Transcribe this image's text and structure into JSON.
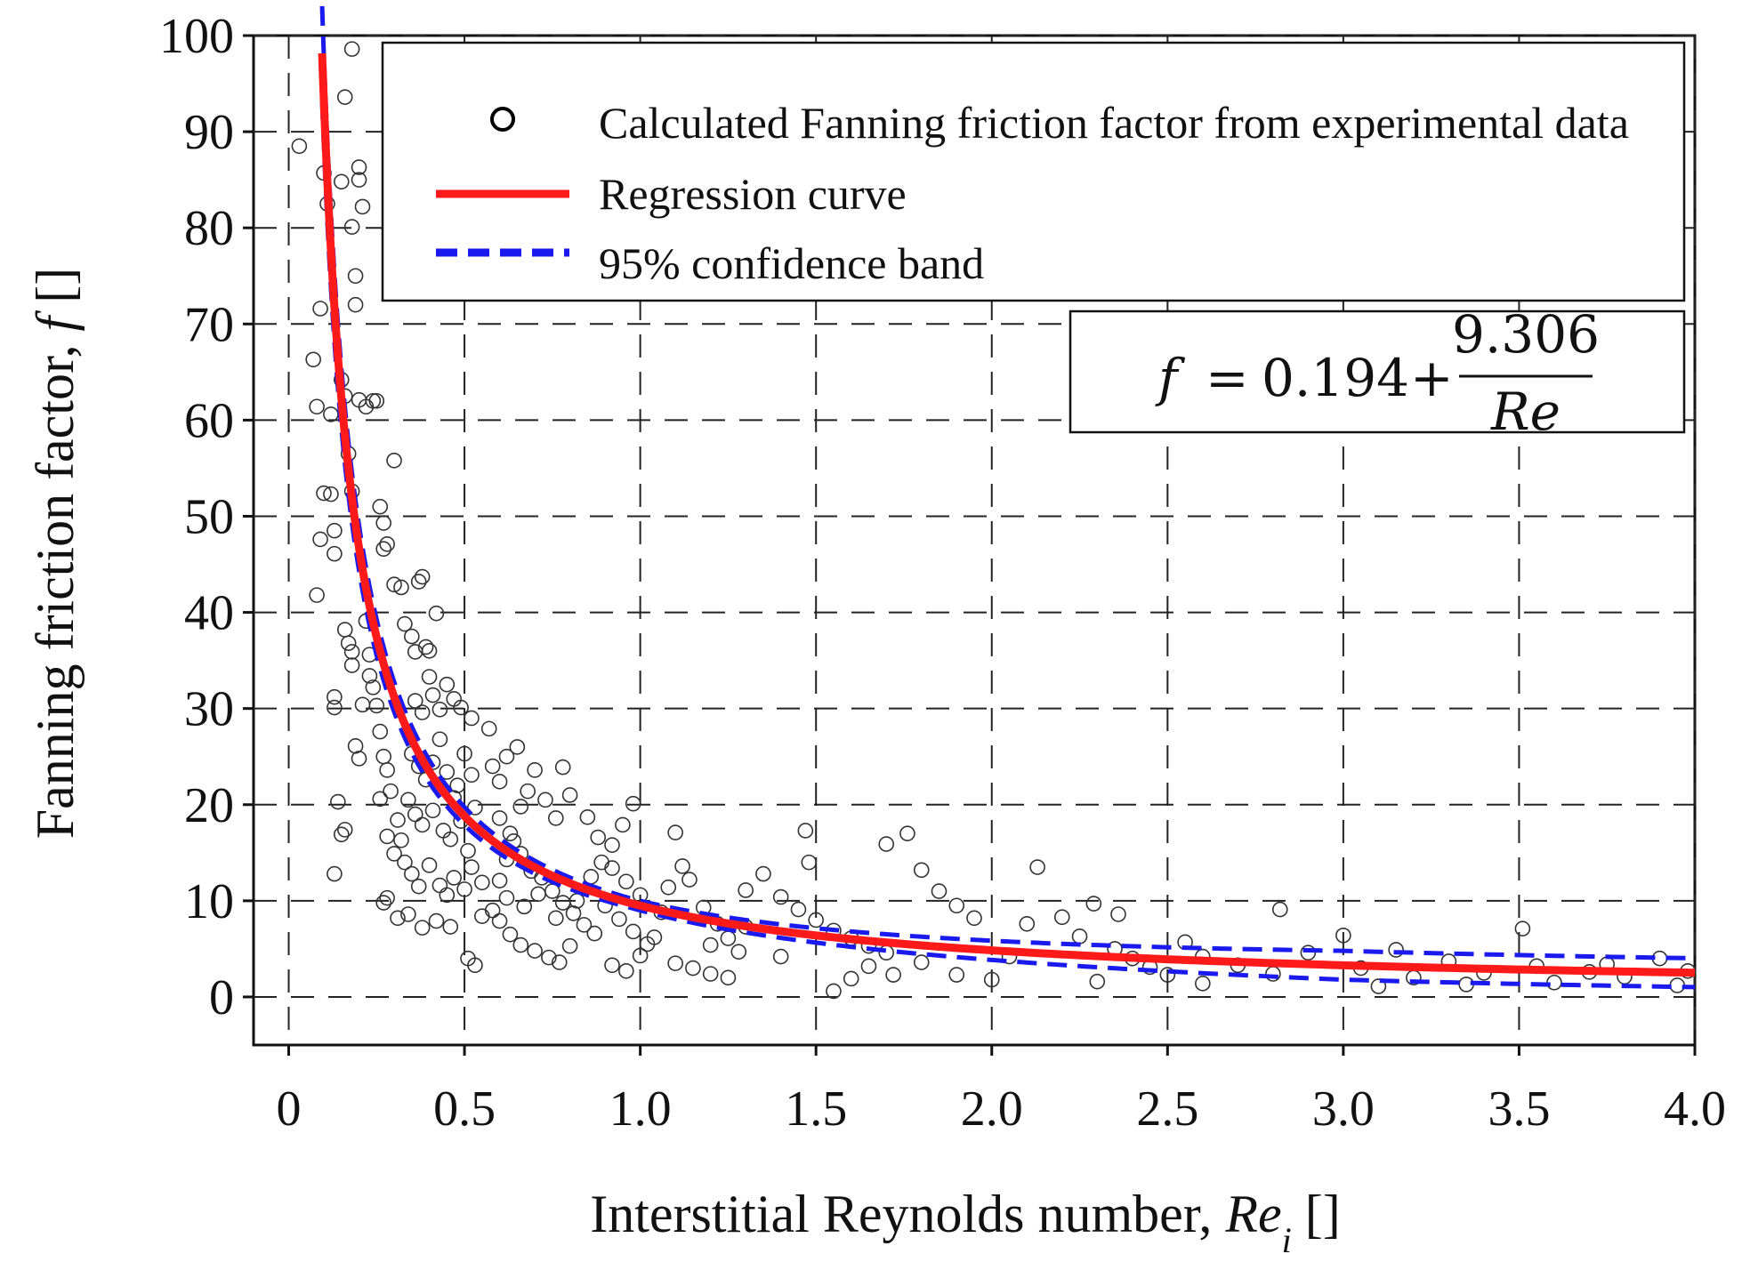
{
  "chart_data": {
    "type": "scatter",
    "xlabel": {
      "main": "Interstitial Reynolds number, ",
      "var": "Re",
      "sub": "i",
      "unit": " []"
    },
    "ylabel": {
      "main": "Fanning friction factor, ",
      "var": "f",
      "unit": " []"
    },
    "xlim": [
      -0.1,
      4.0
    ],
    "ylim": [
      -5,
      100
    ],
    "xticks": [
      0,
      0.5,
      1.0,
      1.5,
      2.0,
      2.5,
      3.0,
      3.5,
      4.0
    ],
    "xtick_labels": [
      "0",
      "0.5",
      "1.0",
      "1.5",
      "2.0",
      "2.5",
      "3.0",
      "3.5",
      "4.0"
    ],
    "yticks": [
      0,
      10,
      20,
      30,
      40,
      50,
      60,
      70,
      80,
      90,
      100
    ],
    "ytick_labels": [
      "0",
      "10",
      "20",
      "30",
      "40",
      "50",
      "60",
      "70",
      "80",
      "90",
      "100"
    ],
    "grid": true,
    "grid_style": "dashed",
    "legend_placement": "top-right",
    "legend": [
      {
        "label": "Calculated Fanning friction factor from experimental data",
        "marker": "open-circle",
        "color": "#000000"
      },
      {
        "label": "Regression curve",
        "marker": "solid-line",
        "color": "#ff1a1a"
      },
      {
        "label": "95% confidence band",
        "marker": "dashed-line",
        "color": "#1a1aee"
      }
    ],
    "equation": {
      "lhs": "f",
      "equals": "=",
      "constant": "0.194",
      "plus": "+",
      "numerator": "9.306",
      "denominator": "Re"
    },
    "regression": {
      "a": 0.194,
      "b": 9.306,
      "x_start": 0.095,
      "x_end": 4.0,
      "color": "#ff1a1a"
    },
    "confidence_band": {
      "relative_width_low_re": 0.05,
      "absolute_width_high_re": 1.5,
      "color": "#1a1aee"
    },
    "scatter_points": [
      [
        0.03,
        88.5
      ],
      [
        0.07,
        66.3
      ],
      [
        0.08,
        61.4
      ],
      [
        0.09,
        71.6
      ],
      [
        0.1,
        85.7
      ],
      [
        0.11,
        82.5
      ],
      [
        0.1,
        52.4
      ],
      [
        0.09,
        47.6
      ],
      [
        0.08,
        41.8
      ],
      [
        0.12,
        52.3
      ],
      [
        0.12,
        60.6
      ],
      [
        0.13,
        46.1
      ],
      [
        0.13,
        48.5
      ],
      [
        0.13,
        31.2
      ],
      [
        0.13,
        30.1
      ],
      [
        0.14,
        20.3
      ],
      [
        0.15,
        16.9
      ],
      [
        0.16,
        17.4
      ],
      [
        0.13,
        12.8
      ],
      [
        0.15,
        84.8
      ],
      [
        0.16,
        93.6
      ],
      [
        0.18,
        98.6
      ],
      [
        0.18,
        80.1
      ],
      [
        0.19,
        75.0
      ],
      [
        0.19,
        72.0
      ],
      [
        0.2,
        86.3
      ],
      [
        0.2,
        85.0
      ],
      [
        0.21,
        82.2
      ],
      [
        0.15,
        64.2
      ],
      [
        0.16,
        62.5
      ],
      [
        0.17,
        56.5
      ],
      [
        0.18,
        52.6
      ],
      [
        0.2,
        62.1
      ],
      [
        0.22,
        61.4
      ],
      [
        0.24,
        62.0
      ],
      [
        0.25,
        62.0
      ],
      [
        0.26,
        51.0
      ],
      [
        0.27,
        49.3
      ],
      [
        0.27,
        46.6
      ],
      [
        0.28,
        47.1
      ],
      [
        0.3,
        55.8
      ],
      [
        0.16,
        38.2
      ],
      [
        0.17,
        36.8
      ],
      [
        0.18,
        35.9
      ],
      [
        0.18,
        34.5
      ],
      [
        0.19,
        26.1
      ],
      [
        0.2,
        24.8
      ],
      [
        0.21,
        30.4
      ],
      [
        0.22,
        39.1
      ],
      [
        0.23,
        35.6
      ],
      [
        0.23,
        33.4
      ],
      [
        0.24,
        32.2
      ],
      [
        0.25,
        30.3
      ],
      [
        0.26,
        27.6
      ],
      [
        0.26,
        20.6
      ],
      [
        0.27,
        25.0
      ],
      [
        0.28,
        23.6
      ],
      [
        0.29,
        21.4
      ],
      [
        0.28,
        16.7
      ],
      [
        0.3,
        14.9
      ],
      [
        0.31,
        18.4
      ],
      [
        0.32,
        16.3
      ],
      [
        0.28,
        10.3
      ],
      [
        0.27,
        9.8
      ],
      [
        0.31,
        8.2
      ],
      [
        0.3,
        42.9
      ],
      [
        0.32,
        42.6
      ],
      [
        0.33,
        38.8
      ],
      [
        0.35,
        37.5
      ],
      [
        0.36,
        35.9
      ],
      [
        0.37,
        43.2
      ],
      [
        0.38,
        43.7
      ],
      [
        0.39,
        36.4
      ],
      [
        0.4,
        36.0
      ],
      [
        0.42,
        39.9
      ],
      [
        0.36,
        30.8
      ],
      [
        0.38,
        29.6
      ],
      [
        0.4,
        33.3
      ],
      [
        0.41,
        31.4
      ],
      [
        0.43,
        29.9
      ],
      [
        0.45,
        32.5
      ],
      [
        0.47,
        31.0
      ],
      [
        0.49,
        30.1
      ],
      [
        0.52,
        29.0
      ],
      [
        0.57,
        27.9
      ],
      [
        0.35,
        25.3
      ],
      [
        0.37,
        24.0
      ],
      [
        0.39,
        22.6
      ],
      [
        0.41,
        24.4
      ],
      [
        0.43,
        26.8
      ],
      [
        0.45,
        23.4
      ],
      [
        0.47,
        20.7
      ],
      [
        0.48,
        22.0
      ],
      [
        0.5,
        25.3
      ],
      [
        0.52,
        23.1
      ],
      [
        0.34,
        20.5
      ],
      [
        0.36,
        19.0
      ],
      [
        0.38,
        17.9
      ],
      [
        0.41,
        19.4
      ],
      [
        0.44,
        17.3
      ],
      [
        0.46,
        16.4
      ],
      [
        0.49,
        18.3
      ],
      [
        0.51,
        15.2
      ],
      [
        0.53,
        19.7
      ],
      [
        0.33,
        14.0
      ],
      [
        0.35,
        12.8
      ],
      [
        0.37,
        11.5
      ],
      [
        0.4,
        13.7
      ],
      [
        0.43,
        11.6
      ],
      [
        0.45,
        10.6
      ],
      [
        0.47,
        12.4
      ],
      [
        0.5,
        11.2
      ],
      [
        0.52,
        13.5
      ],
      [
        0.55,
        11.9
      ],
      [
        0.34,
        8.6
      ],
      [
        0.38,
        7.2
      ],
      [
        0.42,
        7.9
      ],
      [
        0.46,
        7.3
      ],
      [
        0.51,
        4.0
      ],
      [
        0.53,
        3.3
      ],
      [
        0.55,
        8.4
      ],
      [
        0.58,
        9.0
      ],
      [
        0.6,
        12.1
      ],
      [
        0.62,
        14.3
      ],
      [
        0.64,
        16.2
      ],
      [
        0.66,
        19.8
      ],
      [
        0.68,
        21.4
      ],
      [
        0.7,
        23.6
      ],
      [
        0.73,
        20.5
      ],
      [
        0.76,
        18.6
      ],
      [
        0.78,
        23.9
      ],
      [
        0.8,
        21.0
      ],
      [
        0.6,
        22.4
      ],
      [
        0.62,
        25.0
      ],
      [
        0.58,
        24.0
      ],
      [
        0.65,
        26.0
      ],
      [
        0.6,
        18.6
      ],
      [
        0.63,
        17.0
      ],
      [
        0.66,
        14.9
      ],
      [
        0.69,
        13.1
      ],
      [
        0.72,
        12.4
      ],
      [
        0.75,
        11.0
      ],
      [
        0.78,
        9.8
      ],
      [
        0.81,
        8.7
      ],
      [
        0.84,
        7.5
      ],
      [
        0.87,
        6.6
      ],
      [
        0.6,
        7.9
      ],
      [
        0.63,
        6.5
      ],
      [
        0.66,
        5.4
      ],
      [
        0.7,
        4.8
      ],
      [
        0.74,
        4.1
      ],
      [
        0.77,
        3.6
      ],
      [
        0.8,
        5.3
      ],
      [
        0.62,
        10.3
      ],
      [
        0.67,
        9.4
      ],
      [
        0.71,
        10.7
      ],
      [
        0.76,
        8.2
      ],
      [
        0.82,
        10.0
      ],
      [
        0.86,
        12.5
      ],
      [
        0.89,
        14.0
      ],
      [
        0.92,
        15.8
      ],
      [
        0.95,
        17.9
      ],
      [
        0.98,
        20.1
      ],
      [
        0.85,
        18.7
      ],
      [
        0.88,
        16.6
      ],
      [
        0.92,
        13.4
      ],
      [
        0.96,
        12.0
      ],
      [
        1.0,
        10.6
      ],
      [
        0.9,
        9.5
      ],
      [
        0.94,
        8.1
      ],
      [
        0.98,
        6.8
      ],
      [
        1.02,
        5.5
      ],
      [
        0.92,
        3.3
      ],
      [
        0.96,
        2.7
      ],
      [
        1.0,
        4.3
      ],
      [
        1.04,
        6.2
      ],
      [
        1.06,
        8.8
      ],
      [
        1.08,
        11.4
      ],
      [
        1.1,
        17.1
      ],
      [
        1.12,
        13.6
      ],
      [
        1.14,
        12.2
      ],
      [
        1.18,
        9.3
      ],
      [
        1.22,
        7.6
      ],
      [
        1.25,
        6.1
      ],
      [
        1.28,
        4.7
      ],
      [
        1.1,
        3.5
      ],
      [
        1.15,
        3.0
      ],
      [
        1.2,
        2.4
      ],
      [
        1.25,
        2.0
      ],
      [
        1.3,
        11.1
      ],
      [
        1.35,
        12.8
      ],
      [
        1.4,
        10.4
      ],
      [
        1.45,
        9.1
      ],
      [
        1.47,
        17.3
      ],
      [
        1.48,
        14.0
      ],
      [
        1.5,
        8.0
      ],
      [
        1.55,
        6.9
      ],
      [
        1.6,
        6.1
      ],
      [
        1.65,
        5.3
      ],
      [
        1.7,
        4.6
      ],
      [
        1.7,
        15.9
      ],
      [
        1.76,
        17.0
      ],
      [
        1.8,
        13.2
      ],
      [
        1.85,
        11.0
      ],
      [
        1.9,
        9.5
      ],
      [
        1.95,
        8.2
      ],
      [
        1.55,
        0.6
      ],
      [
        1.6,
        1.9
      ],
      [
        1.65,
        3.2
      ],
      [
        1.72,
        2.3
      ],
      [
        1.8,
        3.6
      ],
      [
        1.9,
        2.3
      ],
      [
        2.0,
        1.8
      ],
      [
        2.05,
        4.2
      ],
      [
        2.1,
        7.6
      ],
      [
        2.13,
        13.5
      ],
      [
        2.2,
        8.3
      ],
      [
        2.25,
        6.3
      ],
      [
        2.29,
        9.7
      ],
      [
        2.35,
        5.0
      ],
      [
        2.36,
        8.6
      ],
      [
        2.4,
        4.0
      ],
      [
        2.45,
        3.1
      ],
      [
        2.5,
        2.3
      ],
      [
        2.55,
        5.7
      ],
      [
        2.6,
        4.2
      ],
      [
        2.7,
        3.3
      ],
      [
        2.8,
        2.4
      ],
      [
        2.82,
        9.1
      ],
      [
        2.9,
        4.6
      ],
      [
        3.0,
        6.4
      ],
      [
        3.05,
        3.0
      ],
      [
        3.15,
        4.9
      ],
      [
        3.2,
        2.0
      ],
      [
        3.3,
        3.7
      ],
      [
        3.4,
        2.5
      ],
      [
        3.51,
        7.1
      ],
      [
        3.55,
        3.2
      ],
      [
        3.6,
        1.5
      ],
      [
        3.7,
        2.6
      ],
      [
        3.8,
        2.1
      ],
      [
        3.9,
        4.0
      ],
      [
        3.95,
        1.2
      ],
      [
        1.2,
        5.4
      ],
      [
        1.4,
        4.2
      ],
      [
        1.3,
        7.3
      ],
      [
        2.3,
        1.6
      ],
      [
        2.6,
        1.4
      ],
      [
        3.1,
        1.1
      ],
      [
        3.35,
        1.3
      ],
      [
        3.75,
        3.4
      ],
      [
        3.98,
        2.7
      ]
    ]
  }
}
